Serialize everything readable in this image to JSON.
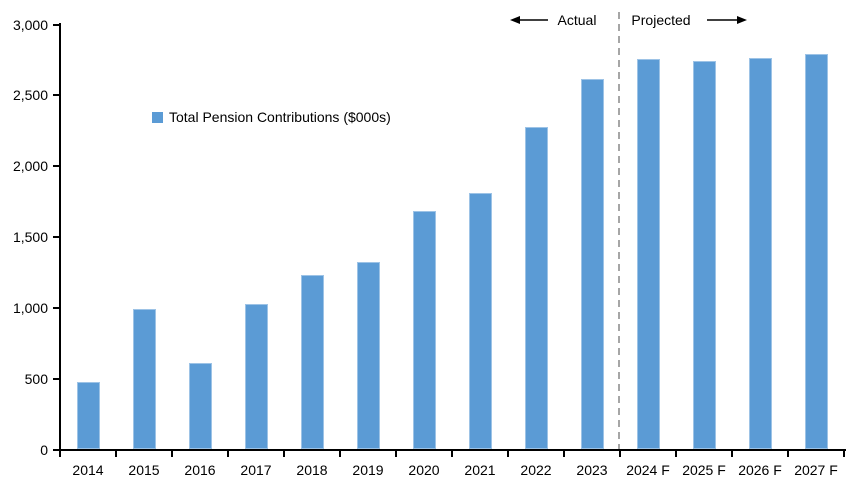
{
  "chart_data": {
    "type": "bar",
    "title": "",
    "xlabel": "",
    "ylabel": "",
    "categories": [
      "2014",
      "2015",
      "2016",
      "2017",
      "2018",
      "2019",
      "2020",
      "2021",
      "2022",
      "2023",
      "2024 F",
      "2025 F",
      "2026 F",
      "2027 F"
    ],
    "series": [
      {
        "name": "Total Pension Contributions ($000s)",
        "values": [
          470,
          990,
          610,
          1020,
          1230,
          1320,
          1680,
          1810,
          2270,
          2610,
          2750,
          2740,
          2760,
          2790
        ]
      }
    ],
    "ylim": [
      0,
      3000
    ],
    "yticks": [
      0,
      500,
      1000,
      1500,
      2000,
      2500,
      3000
    ],
    "ytick_labels": [
      "0",
      "500",
      "1,000",
      "1,500",
      "2,000",
      "2,500",
      "3,000"
    ],
    "grid": false,
    "legend_position": "inside-upper-left",
    "annotations": {
      "actual": "Actual",
      "projected": "Projected",
      "divider_between": [
        "2023",
        "2024 F"
      ]
    },
    "colors": {
      "bar": "#5B9BD5",
      "bar_edge": "#9DC3E6",
      "divider": "#A6A6A6",
      "axis": "#000000",
      "text": "#000000"
    }
  }
}
